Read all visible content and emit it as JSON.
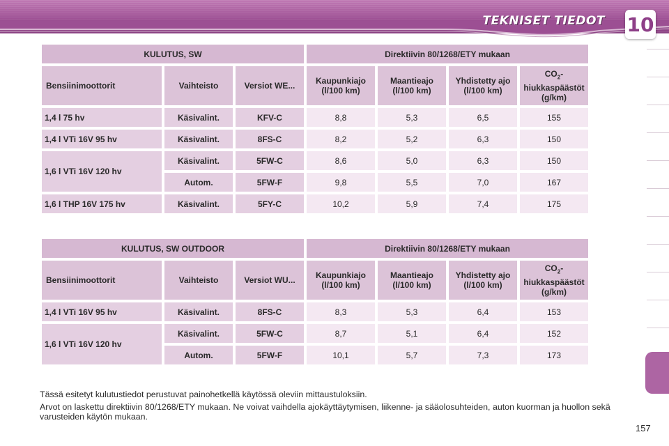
{
  "header": {
    "title": "TEKNISET TIEDOT",
    "chapter": "10"
  },
  "colors": {
    "header": "#9c4f93",
    "table_header": "#d6b8d2",
    "label_cell": "#e4cfe1",
    "value_cell": "#f4e8f2",
    "side_tab": "#ad65a3"
  },
  "column_headers": {
    "engine": "Bensiinimoottorit",
    "gearbox": "Vaihteisto",
    "city": "Kaupunkiajo (l/100 km)",
    "highway": "Maantieajo (l/100 km)",
    "combined": "Yhdistetty ajo (l/100 km)",
    "co2_pre": "CO",
    "co2_sub": "2",
    "co2_post": "-hiukkaspäästöt (g/km)"
  },
  "table1": {
    "title": "KULUTUS, SW",
    "directive": "Direktiivin 80/1268/ETY mukaan",
    "versions_header": "Versiot WE...",
    "rows": [
      {
        "engine": "1,4 l 75 hv",
        "gearbox": "Käsivalint.",
        "version": "KFV-C",
        "city": "8,8",
        "highway": "5,3",
        "combined": "6,5",
        "co2": "155"
      },
      {
        "engine": "1,4 l VTi 16V 95 hv",
        "gearbox": "Käsivalint.",
        "version": "8FS-C",
        "city": "8,2",
        "highway": "5,2",
        "combined": "6,3",
        "co2": "150"
      },
      {
        "engine": "1,6 l VTi 16V 120 hv",
        "gearbox": "Käsivalint.",
        "version": "5FW-C",
        "city": "8,6",
        "highway": "5,0",
        "combined": "6,3",
        "co2": "150"
      },
      {
        "engine": "",
        "gearbox": "Autom.",
        "version": "5FW-F",
        "city": "9,8",
        "highway": "5,5",
        "combined": "7,0",
        "co2": "167"
      },
      {
        "engine": "1,6 l THP 16V 175 hv",
        "gearbox": "Käsivalint.",
        "version": "5FY-C",
        "city": "10,2",
        "highway": "5,9",
        "combined": "7,4",
        "co2": "175"
      }
    ]
  },
  "table2": {
    "title": "KULUTUS, SW OUTDOOR",
    "directive": "Direktiivin 80/1268/ETY mukaan",
    "versions_header": "Versiot WU...",
    "rows": [
      {
        "engine": "1,4 l VTi 16V 95 hv",
        "gearbox": "Käsivalint.",
        "version": "8FS-C",
        "city": "8,3",
        "highway": "5,3",
        "combined": "6,4",
        "co2": "153"
      },
      {
        "engine": "1,6 l VTi 16V 120 hv",
        "gearbox": "Käsivalint.",
        "version": "5FW-C",
        "city": "8,7",
        "highway": "5,1",
        "combined": "6,4",
        "co2": "152"
      },
      {
        "engine": "",
        "gearbox": "Autom.",
        "version": "5FW-F",
        "city": "10,1",
        "highway": "5,7",
        "combined": "7,3",
        "co2": "173"
      }
    ]
  },
  "notes": [
    "Tässä esitetyt kulutustiedot perustuvat painohetkellä käytössä oleviin mittaustuloksiin.",
    "Arvot on laskettu direktiivin 80/1268/ETY mukaan. Ne voivat vaihdella ajokäyttäytymisen, liikenne- ja sääolosuhteiden, auton kuorman ja huollon sekä varusteiden käytön mukaan."
  ],
  "page_number": "157"
}
